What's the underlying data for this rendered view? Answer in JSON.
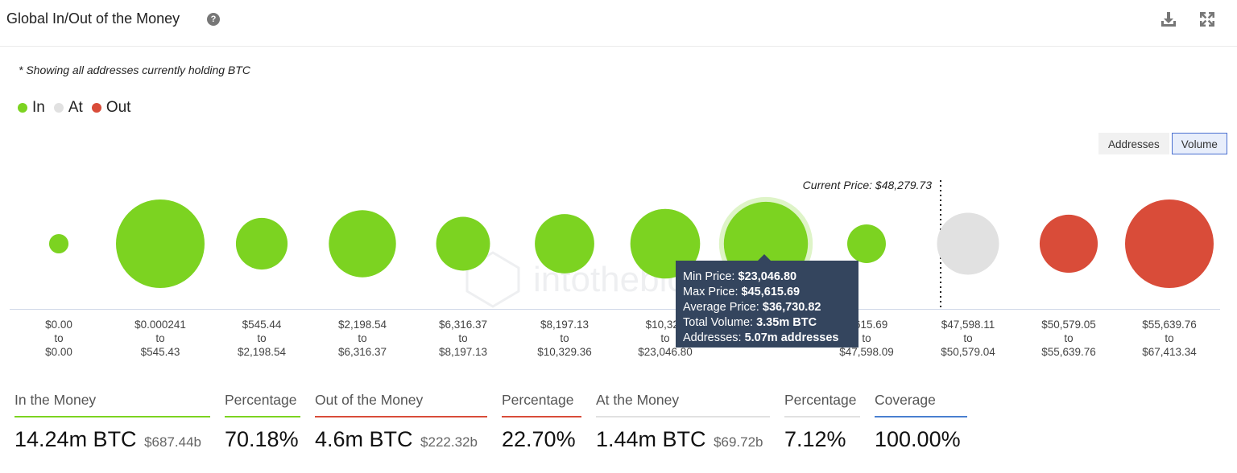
{
  "header": {
    "title": "Global In/Out of the Money",
    "help_icon": "question-icon",
    "download_icon": "download-icon",
    "expand_icon": "expand-icon"
  },
  "note": "* Showing all addresses currently holding BTC",
  "legend": [
    {
      "label": "In",
      "color": "#7cd321"
    },
    {
      "label": "At",
      "color": "#e1e1e1"
    },
    {
      "label": "Out",
      "color": "#d94c39"
    }
  ],
  "toggle": {
    "addresses": "Addresses",
    "volume": "Volume"
  },
  "watermark": "intotheblock",
  "chart_data": {
    "type": "bubble",
    "current_price_label": "Current Price: $48,279.73",
    "current_price": 48279.73,
    "buckets": [
      {
        "from": "$0.00",
        "to_word": "to",
        "to": "$0.00",
        "status": "in",
        "relative_volume": 0.048
      },
      {
        "from": "$0.000241",
        "to_word": "to",
        "to": "$545.43",
        "status": "in",
        "relative_volume": 1.0
      },
      {
        "from": "$545.44",
        "to_word": "to",
        "to": "$2,198.54",
        "status": "in",
        "relative_volume": 0.34
      },
      {
        "from": "$2,198.54",
        "to_word": "to",
        "to": "$6,316.37",
        "status": "in",
        "relative_volume": 0.575
      },
      {
        "from": "$6,316.37",
        "to_word": "to",
        "to": "$8,197.13",
        "status": "in",
        "relative_volume": 0.37
      },
      {
        "from": "$8,197.13",
        "to_word": "to",
        "to": "$10,329.36",
        "status": "in",
        "relative_volume": 0.45
      },
      {
        "from": "$10,329",
        "to_word": "to",
        "to": "$23,046.80",
        "status": "in",
        "relative_volume": 0.62
      },
      {
        "from": "",
        "to_word": "",
        "to": "",
        "status": "in",
        "relative_volume": 0.9,
        "highlighted": true
      },
      {
        "from": "5,615.69",
        "to_word": "to",
        "to": "$47,598.09",
        "status": "in",
        "relative_volume": 0.19
      },
      {
        "from": "$47,598.11",
        "to_word": "to",
        "to": "$50,579.04",
        "status": "at",
        "relative_volume": 0.49
      },
      {
        "from": "$50,579.05",
        "to_word": "to",
        "to": "$55,639.76",
        "status": "out",
        "relative_volume": 0.43
      },
      {
        "from": "$55,639.76",
        "to_word": "to",
        "to": "$67,413.34",
        "status": "out",
        "relative_volume": 1.0
      }
    ]
  },
  "tooltip": {
    "min_label": "Min Price:",
    "min_value": "$23,046.80",
    "max_label": "Max Price:",
    "max_value": "$45,615.69",
    "avg_label": "Average Price:",
    "avg_value": "$36,730.82",
    "vol_label": "Total Volume:",
    "vol_value": "3.35m BTC",
    "addr_label": "Addresses:",
    "addr_value": "5.07m addresses"
  },
  "stats": {
    "in": {
      "label": "In the Money",
      "value": "14.24m BTC",
      "sub": "$687.44b",
      "color": "#7cd321"
    },
    "in_pct": {
      "label": "Percentage",
      "value": "70.18%",
      "color": "#7cd321"
    },
    "out": {
      "label": "Out of the Money",
      "value": "4.6m BTC",
      "sub": "$222.32b",
      "color": "#d94c39"
    },
    "out_pct": {
      "label": "Percentage",
      "value": "22.70%",
      "color": "#d94c39"
    },
    "at": {
      "label": "At the Money",
      "value": "1.44m BTC",
      "sub": "$69.72b",
      "color": "#e1e1e1"
    },
    "at_pct": {
      "label": "Percentage",
      "value": "7.12%",
      "color": "#e1e1e1"
    },
    "coverage": {
      "label": "Coverage",
      "value": "100.00%",
      "color": "#4a7fd0"
    }
  }
}
